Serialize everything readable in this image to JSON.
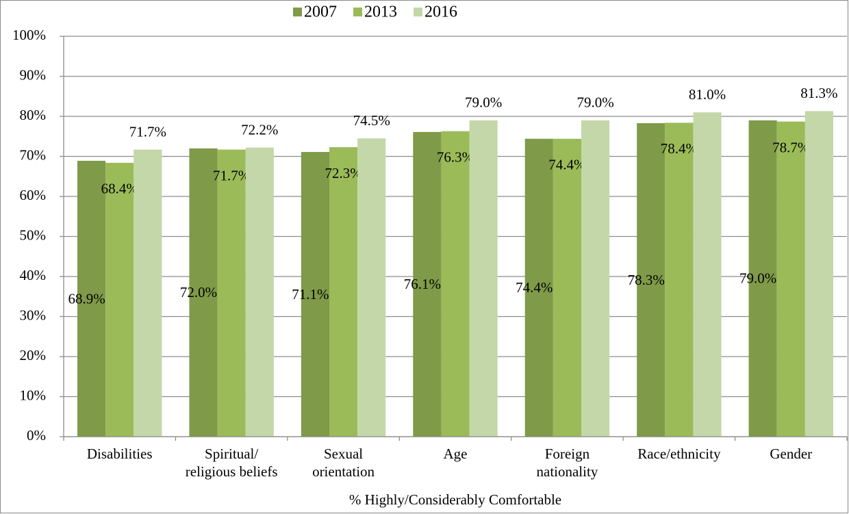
{
  "chart_data": {
    "type": "bar",
    "x_label": "% Highly/Considerably Comfortable",
    "categories": [
      "Disabilities",
      "Spiritual/ religious beliefs",
      "Sexual orientation",
      "Age",
      "Foreign nationality",
      "Race/ethnicity",
      "Gender"
    ],
    "series": [
      {
        "name": "2007",
        "color": "#7f9a48",
        "values": [
          68.9,
          72.0,
          71.1,
          76.1,
          74.4,
          78.3,
          79.0
        ],
        "value_labels": [
          "68.9%",
          "72.0%",
          "71.1%",
          "76.1%",
          "74.4%",
          "78.3%",
          "79.0%"
        ]
      },
      {
        "name": "2013",
        "color": "#9bbb59",
        "values": [
          68.4,
          71.7,
          72.3,
          76.3,
          74.4,
          78.4,
          78.7
        ],
        "value_labels": [
          "68.4%",
          "71.7%",
          "72.3%",
          "76.3%",
          "74.4%",
          "78.4%",
          "78.7%"
        ]
      },
      {
        "name": "2016",
        "color": "#c4d7a9",
        "values": [
          71.7,
          72.2,
          74.5,
          79.0,
          79.0,
          81.0,
          81.3
        ],
        "value_labels": [
          "71.7%",
          "72.2%",
          "74.5%",
          "79.0%",
          "79.0%",
          "81.0%",
          "81.3%"
        ]
      }
    ],
    "ylim": [
      0,
      100
    ],
    "yticks": [
      {
        "value": 0,
        "label": "0%"
      },
      {
        "value": 10,
        "label": "10%"
      },
      {
        "value": 20,
        "label": "20%"
      },
      {
        "value": 30,
        "label": "30%"
      },
      {
        "value": 40,
        "label": "40%"
      },
      {
        "value": 50,
        "label": "50%"
      },
      {
        "value": 60,
        "label": "60%"
      },
      {
        "value": 70,
        "label": "70%"
      },
      {
        "value": 80,
        "label": "80%"
      },
      {
        "value": 90,
        "label": "90%"
      },
      {
        "value": 100,
        "label": "100%"
      }
    ],
    "grid": true,
    "legend": "top"
  }
}
